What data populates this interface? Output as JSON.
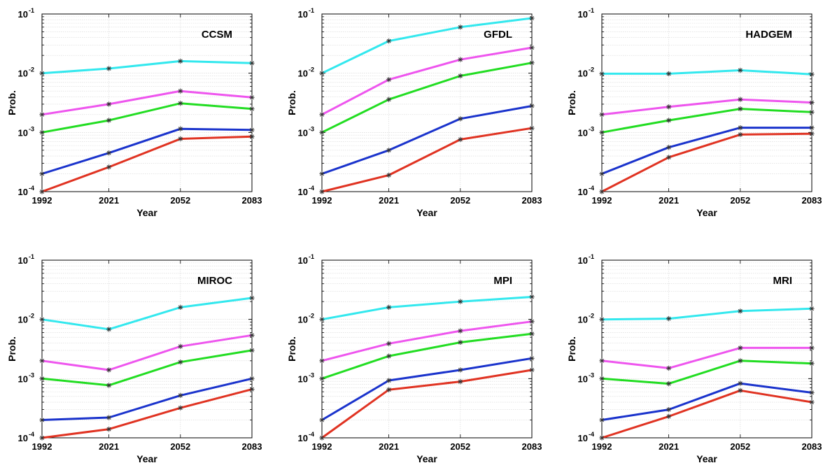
{
  "figure": {
    "axis_ylabel": "Prob.",
    "axis_xlabel": "Year",
    "series_colors": [
      "#33e8ee",
      "#ee55ee",
      "#22dd22",
      "#1a33cc",
      "#e03322"
    ],
    "marker": "asterisk",
    "marker_color": "#333333"
  },
  "chart_data": [
    {
      "type": "line",
      "title": "CCSM",
      "xlabel": "Year",
      "ylabel": "Prob.",
      "x": [
        1992,
        2021,
        2052,
        2083
      ],
      "x_tick_labels": [
        "1992",
        "2021",
        "2052",
        "2083"
      ],
      "y_scale": "log",
      "ylim": [
        0.0001,
        0.1
      ],
      "y_tick_labels": [
        {
          "base": "10",
          "exp": "-4"
        },
        {
          "base": "10",
          "exp": "-3"
        },
        {
          "base": "10",
          "exp": "-2"
        },
        {
          "base": "10",
          "exp": "-1"
        }
      ],
      "grid": true,
      "series": [
        {
          "color": "#33e8ee",
          "values": [
            0.01,
            0.012,
            0.016,
            0.0148
          ]
        },
        {
          "color": "#ee55ee",
          "values": [
            0.002,
            0.003,
            0.005,
            0.0039
          ]
        },
        {
          "color": "#22dd22",
          "values": [
            0.001,
            0.0016,
            0.0031,
            0.0025
          ]
        },
        {
          "color": "#1a33cc",
          "values": [
            0.0002,
            0.00045,
            0.00115,
            0.0011
          ]
        },
        {
          "color": "#e03322",
          "values": [
            0.0001,
            0.00026,
            0.00078,
            0.00085
          ]
        }
      ]
    },
    {
      "type": "line",
      "title": "GFDL",
      "xlabel": "Year",
      "ylabel": "Prob.",
      "x": [
        1992,
        2021,
        2052,
        2083
      ],
      "x_tick_labels": [
        "1992",
        "2021",
        "2052",
        "2083"
      ],
      "y_scale": "log",
      "ylim": [
        0.0001,
        0.1
      ],
      "y_tick_labels": [
        {
          "base": "10",
          "exp": "-4"
        },
        {
          "base": "10",
          "exp": "-3"
        },
        {
          "base": "10",
          "exp": "-2"
        },
        {
          "base": "10",
          "exp": "-1"
        }
      ],
      "grid": true,
      "series": [
        {
          "color": "#33e8ee",
          "values": [
            0.01,
            0.035,
            0.06,
            0.085
          ]
        },
        {
          "color": "#ee55ee",
          "values": [
            0.002,
            0.0078,
            0.017,
            0.027
          ]
        },
        {
          "color": "#22dd22",
          "values": [
            0.001,
            0.0036,
            0.009,
            0.015
          ]
        },
        {
          "color": "#1a33cc",
          "values": [
            0.0002,
            0.0005,
            0.0017,
            0.0028
          ]
        },
        {
          "color": "#e03322",
          "values": [
            0.0001,
            0.00019,
            0.00076,
            0.00118
          ]
        }
      ]
    },
    {
      "type": "line",
      "title": "HADGEM",
      "xlabel": "Year",
      "ylabel": "Prob.",
      "x": [
        1992,
        2021,
        2052,
        2083
      ],
      "x_tick_labels": [
        "1992",
        "2021",
        "2052",
        "2083"
      ],
      "y_scale": "log",
      "ylim": [
        0.0001,
        0.1
      ],
      "y_tick_labels": [
        {
          "base": "10",
          "exp": "-4"
        },
        {
          "base": "10",
          "exp": "-3"
        },
        {
          "base": "10",
          "exp": "-2"
        },
        {
          "base": "10",
          "exp": "-1"
        }
      ],
      "grid": true,
      "series": [
        {
          "color": "#33e8ee",
          "values": [
            0.0098,
            0.0098,
            0.0112,
            0.0096
          ]
        },
        {
          "color": "#ee55ee",
          "values": [
            0.002,
            0.0027,
            0.0036,
            0.0032
          ]
        },
        {
          "color": "#22dd22",
          "values": [
            0.001,
            0.0016,
            0.0025,
            0.0022
          ]
        },
        {
          "color": "#1a33cc",
          "values": [
            0.0002,
            0.00056,
            0.0012,
            0.0012
          ]
        },
        {
          "color": "#e03322",
          "values": [
            0.0001,
            0.00038,
            0.00092,
            0.00095
          ]
        }
      ]
    },
    {
      "type": "line",
      "title": "MIROC",
      "xlabel": "Year",
      "ylabel": "Prob.",
      "x": [
        1992,
        2021,
        2052,
        2083
      ],
      "x_tick_labels": [
        "1992",
        "2021",
        "2052",
        "2083"
      ],
      "y_scale": "log",
      "ylim": [
        0.0001,
        0.1
      ],
      "y_tick_labels": [
        {
          "base": "10",
          "exp": "-4"
        },
        {
          "base": "10",
          "exp": "-3"
        },
        {
          "base": "10",
          "exp": "-2"
        },
        {
          "base": "10",
          "exp": "-1"
        }
      ],
      "grid": true,
      "series": [
        {
          "color": "#33e8ee",
          "values": [
            0.01,
            0.0068,
            0.016,
            0.023
          ]
        },
        {
          "color": "#ee55ee",
          "values": [
            0.002,
            0.0014,
            0.0035,
            0.0054
          ]
        },
        {
          "color": "#22dd22",
          "values": [
            0.001,
            0.00077,
            0.0019,
            0.003
          ]
        },
        {
          "color": "#1a33cc",
          "values": [
            0.0002,
            0.00022,
            0.00052,
            0.001
          ]
        },
        {
          "color": "#e03322",
          "values": [
            0.0001,
            0.00014,
            0.00032,
            0.00066
          ]
        }
      ]
    },
    {
      "type": "line",
      "title": "MPI",
      "xlabel": "Year",
      "ylabel": "Prob.",
      "x": [
        1992,
        2021,
        2052,
        2083
      ],
      "x_tick_labels": [
        "1992",
        "2021",
        "2052",
        "2083"
      ],
      "y_scale": "log",
      "ylim": [
        0.0001,
        0.1
      ],
      "y_tick_labels": [
        {
          "base": "10",
          "exp": "-4"
        },
        {
          "base": "10",
          "exp": "-3"
        },
        {
          "base": "10",
          "exp": "-2"
        },
        {
          "base": "10",
          "exp": "-1"
        }
      ],
      "grid": true,
      "series": [
        {
          "color": "#33e8ee",
          "values": [
            0.01,
            0.016,
            0.02,
            0.024
          ]
        },
        {
          "color": "#ee55ee",
          "values": [
            0.002,
            0.0039,
            0.0064,
            0.0092
          ]
        },
        {
          "color": "#22dd22",
          "values": [
            0.001,
            0.0024,
            0.0041,
            0.0057
          ]
        },
        {
          "color": "#1a33cc",
          "values": [
            0.0002,
            0.00093,
            0.0014,
            0.0022
          ]
        },
        {
          "color": "#e03322",
          "values": [
            0.0001,
            0.00065,
            0.00089,
            0.0014
          ]
        }
      ]
    },
    {
      "type": "line",
      "title": "MRI",
      "xlabel": "Year",
      "ylabel": "Prob.",
      "x": [
        1992,
        2021,
        2052,
        2083
      ],
      "x_tick_labels": [
        "1992",
        "2021",
        "2052",
        "2083"
      ],
      "y_scale": "log",
      "ylim": [
        0.0001,
        0.1
      ],
      "y_tick_labels": [
        {
          "base": "10",
          "exp": "-4"
        },
        {
          "base": "10",
          "exp": "-3"
        },
        {
          "base": "10",
          "exp": "-2"
        },
        {
          "base": "10",
          "exp": "-1"
        }
      ],
      "grid": true,
      "series": [
        {
          "color": "#33e8ee",
          "values": [
            0.01,
            0.0103,
            0.0138,
            0.0152
          ]
        },
        {
          "color": "#ee55ee",
          "values": [
            0.002,
            0.0015,
            0.0033,
            0.0033
          ]
        },
        {
          "color": "#22dd22",
          "values": [
            0.001,
            0.00082,
            0.002,
            0.0018
          ]
        },
        {
          "color": "#1a33cc",
          "values": [
            0.0002,
            0.0003,
            0.00083,
            0.00058
          ]
        },
        {
          "color": "#e03322",
          "values": [
            0.0001,
            0.00023,
            0.00063,
            0.0004
          ]
        }
      ]
    }
  ]
}
